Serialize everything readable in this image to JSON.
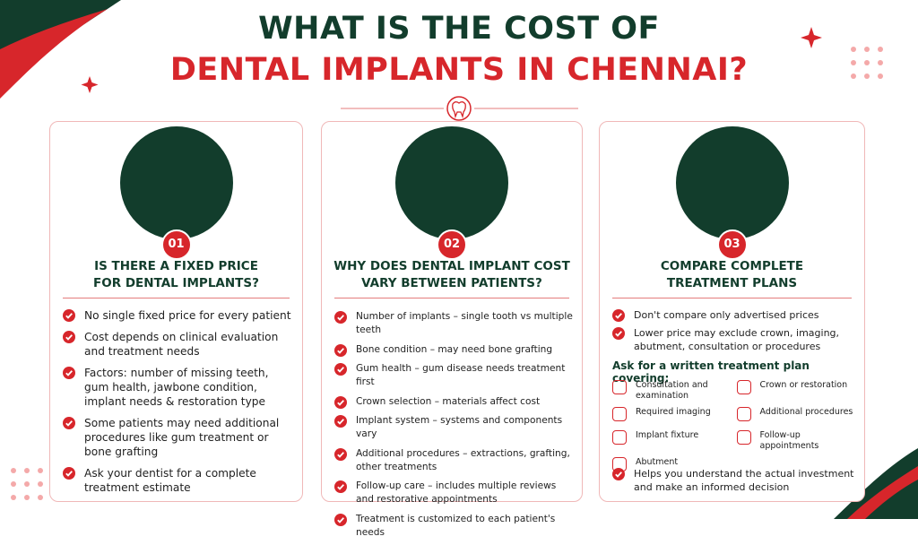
{
  "header": {
    "title_line1": "WHAT IS THE COST OF",
    "title_line2": "DENTAL IMPLANTS IN CHENNAI?"
  },
  "cards": [
    {
      "number": "01",
      "heading": [
        "IS THERE A FIXED PRICE",
        "FOR DENTAL IMPLANTS?"
      ],
      "bullets": [
        "No single fixed price for every patient",
        "Cost depends on clinical evaluation and treatment needs",
        "Factors: number of missing teeth, gum health, jawbone condition, implant needs & restoration type",
        "Some patients may need additional procedures like gum treatment or bone grafting",
        "Ask your dentist for a complete treatment estimate"
      ]
    },
    {
      "number": "02",
      "heading": [
        "WHY DOES DENTAL IMPLANT COST",
        "VARY BETWEEN PATIENTS?"
      ],
      "bullets": [
        "Number of implants – single tooth vs multiple teeth",
        "Bone condition – may need bone grafting",
        "Gum health – gum disease needs treatment first",
        "Crown selection – materials affect cost",
        "Implant system – systems and components vary",
        "Additional procedures – extractions, grafting, other treatments",
        "Follow-up care – includes multiple reviews and restorative appointments",
        "Treatment is customized to each patient's needs"
      ]
    },
    {
      "number": "03",
      "heading": [
        "COMPARE COMPLETE",
        "TREATMENT PLANS"
      ],
      "bullets": [
        "Don't compare only advertised prices",
        "Lower price may exclude crown, imaging, abutment, consultation or procedures"
      ],
      "subheading": "Ask for a written treatment plan covering:",
      "plan_items": [
        "Consultation and examination",
        "Crown or restoration",
        "Required imaging",
        "Additional procedures",
        "Implant fixture",
        "Follow-up appointments",
        "Abutment"
      ],
      "closing": "Helps you understand the actual investment and make an informed decision"
    }
  ]
}
